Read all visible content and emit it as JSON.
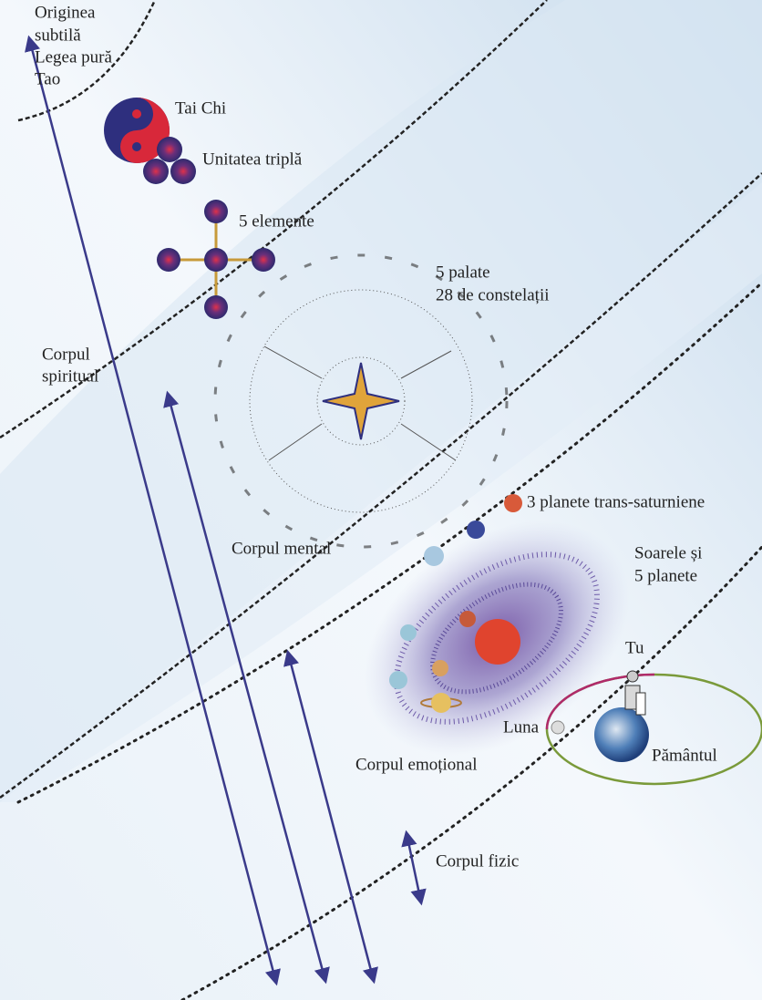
{
  "labels": {
    "origin": [
      "Originea",
      "subtilă",
      "Legea pură",
      "Tao"
    ],
    "tai_chi": "Tai Chi",
    "triple_unity": "Unitatea triplă",
    "five_elements": "5 elemente",
    "palaces": [
      "5 palate",
      "28 de constelații"
    ],
    "spiritual_body": [
      "Corpul",
      "spiritual"
    ],
    "mental_body": "Corpul mental",
    "trans_saturnian": "3 planete trans-saturniene",
    "sun_planets": [
      "Soarele și",
      "5 planete"
    ],
    "emotional_body": "Corpul emoțional",
    "you": "Tu",
    "moon": "Luna",
    "earth": "Pământul",
    "physical_body": "Corpul fizic"
  }
}
